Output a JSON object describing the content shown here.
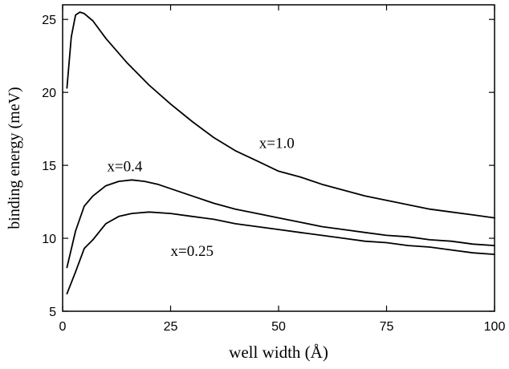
{
  "chart_data": {
    "type": "line",
    "title": "",
    "xlabel": "well width (Å)",
    "ylabel": "binding energy (meV)",
    "xlim": [
      0,
      100
    ],
    "ylim": [
      5,
      26
    ],
    "xticks": [
      0,
      25,
      50,
      75,
      100
    ],
    "yticks": [
      5,
      10,
      15,
      20,
      25
    ],
    "grid": false,
    "series": [
      {
        "name": "x=1.0",
        "x": [
          1,
          2,
          3,
          4,
          5,
          7,
          10,
          15,
          20,
          25,
          30,
          35,
          40,
          45,
          50,
          55,
          60,
          65,
          70,
          75,
          80,
          85,
          90,
          95,
          100
        ],
        "y": [
          20.3,
          23.8,
          25.3,
          25.5,
          25.4,
          24.9,
          23.7,
          22.0,
          20.5,
          19.2,
          18.0,
          16.9,
          16.0,
          15.3,
          14.6,
          14.2,
          13.7,
          13.3,
          12.9,
          12.6,
          12.3,
          12.0,
          11.8,
          11.6,
          11.4
        ],
        "label": {
          "text": "x=1.0",
          "x": 45.5,
          "y": 16.2
        }
      },
      {
        "name": "x=0.4",
        "x": [
          1,
          3,
          5,
          7,
          10,
          13,
          16,
          19,
          22,
          25,
          30,
          35,
          40,
          45,
          50,
          55,
          60,
          65,
          70,
          75,
          80,
          85,
          90,
          95,
          100
        ],
        "y": [
          8.0,
          10.5,
          12.2,
          12.9,
          13.6,
          13.9,
          14.0,
          13.9,
          13.7,
          13.4,
          12.9,
          12.4,
          12.0,
          11.7,
          11.4,
          11.1,
          10.8,
          10.6,
          10.4,
          10.2,
          10.1,
          9.9,
          9.8,
          9.6,
          9.5
        ],
        "label": {
          "text": "x=0.4",
          "x": 10.3,
          "y": 14.6
        }
      },
      {
        "name": "x=0.25",
        "x": [
          1,
          3,
          5,
          7,
          10,
          13,
          16,
          20,
          25,
          30,
          35,
          40,
          45,
          50,
          55,
          60,
          65,
          70,
          75,
          80,
          85,
          90,
          95,
          100
        ],
        "y": [
          6.2,
          7.7,
          9.3,
          9.9,
          11.0,
          11.5,
          11.7,
          11.8,
          11.7,
          11.5,
          11.3,
          11.0,
          10.8,
          10.6,
          10.4,
          10.2,
          10.0,
          9.8,
          9.7,
          9.5,
          9.4,
          9.2,
          9.0,
          8.9
        ],
        "label": {
          "text": "x=0.25",
          "x": 25.0,
          "y": 8.8
        }
      }
    ]
  }
}
